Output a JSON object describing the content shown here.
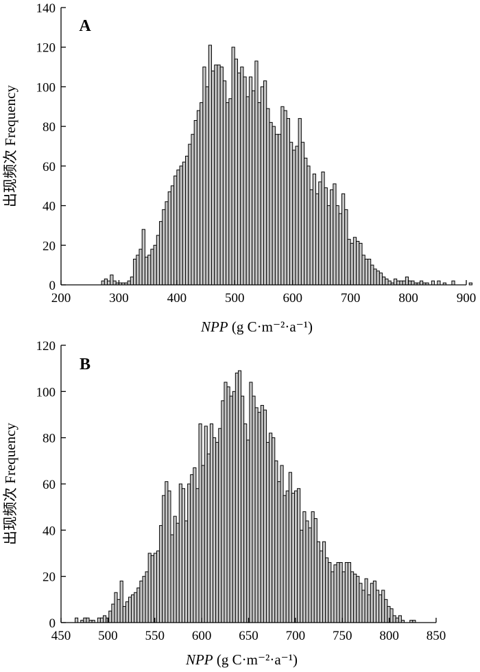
{
  "chart_data": [
    {
      "type": "bar",
      "panel_label": "A",
      "xlabel": "NPP (g C·m⁻²·a⁻¹)",
      "xlabel_italic": "NPP",
      "xlabel_rest": " (g C·m⁻²·a⁻¹)",
      "ylabel": "出现频次 Frequency",
      "xlim": [
        200,
        900
      ],
      "ylim": [
        0,
        140
      ],
      "xticks": [
        200,
        300,
        400,
        500,
        600,
        700,
        800,
        900
      ],
      "yticks": [
        0,
        20,
        40,
        60,
        80,
        100,
        120,
        140
      ],
      "bin_width": 5,
      "bins_start": 270,
      "values": [
        2,
        3,
        2,
        5,
        2,
        1,
        1,
        1,
        1,
        2,
        4,
        13,
        15,
        18,
        28,
        14,
        15,
        18,
        20,
        25,
        32,
        38,
        42,
        47,
        50,
        55,
        58,
        60,
        62,
        65,
        71,
        76,
        83,
        88,
        92,
        110,
        100,
        121,
        108,
        111,
        111,
        110,
        103,
        92,
        94,
        120,
        114,
        107,
        110,
        105,
        95,
        105,
        98,
        113,
        92,
        100,
        103,
        89,
        82,
        80,
        76,
        76,
        90,
        88,
        84,
        72,
        68,
        70,
        84,
        72,
        64,
        60,
        48,
        56,
        46,
        52,
        57,
        49,
        40,
        48,
        51,
        40,
        36,
        46,
        38,
        23,
        21,
        24,
        22,
        21,
        15,
        13,
        13,
        10,
        8,
        7,
        6,
        4,
        3,
        2,
        1,
        3,
        2,
        2,
        2,
        4,
        2,
        2,
        1,
        1,
        2,
        1,
        1,
        0,
        2,
        0,
        2,
        0,
        1,
        0,
        0,
        2,
        0,
        0,
        0,
        0,
        0,
        1
      ]
    },
    {
      "type": "bar",
      "panel_label": "B",
      "xlabel": "NPP (g C·m⁻²·a⁻¹)",
      "xlabel_italic": "NPP",
      "xlabel_rest": " (g C·m⁻²·a⁻¹)",
      "ylabel": "出现频次 Frequency",
      "xlim": [
        450,
        850
      ],
      "ylim": [
        0,
        120
      ],
      "xticks": [
        450,
        500,
        550,
        600,
        650,
        700,
        750,
        800,
        850
      ],
      "yticks": [
        0,
        20,
        40,
        60,
        80,
        100,
        120
      ],
      "bin_width": 3,
      "bins_start": 465,
      "values": [
        2,
        0,
        1,
        2,
        2,
        1,
        1,
        0,
        2,
        2,
        3,
        2,
        5,
        8,
        13,
        10,
        18,
        7,
        9,
        11,
        12,
        13,
        15,
        18,
        20,
        22,
        30,
        29,
        30,
        31,
        42,
        55,
        61,
        57,
        38,
        46,
        43,
        60,
        58,
        44,
        60,
        64,
        67,
        58,
        86,
        68,
        85,
        73,
        86,
        80,
        78,
        84,
        96,
        104,
        102,
        98,
        100,
        108,
        109,
        98,
        86,
        79,
        104,
        98,
        93,
        91,
        94,
        92,
        78,
        82,
        80,
        70,
        61,
        68,
        55,
        57,
        65,
        56,
        57,
        58,
        40,
        48,
        44,
        41,
        48,
        45,
        35,
        31,
        35,
        28,
        26,
        22,
        25,
        26,
        26,
        22,
        26,
        26,
        22,
        21,
        20,
        17,
        14,
        19,
        12,
        17,
        18,
        14,
        12,
        14,
        10,
        7,
        6,
        3,
        2,
        3,
        1,
        0,
        0,
        1,
        1
      ]
    }
  ],
  "colors": {
    "bar_fill": "#c8c8c8",
    "bar_stroke": "#000000",
    "axis": "#000000"
  }
}
